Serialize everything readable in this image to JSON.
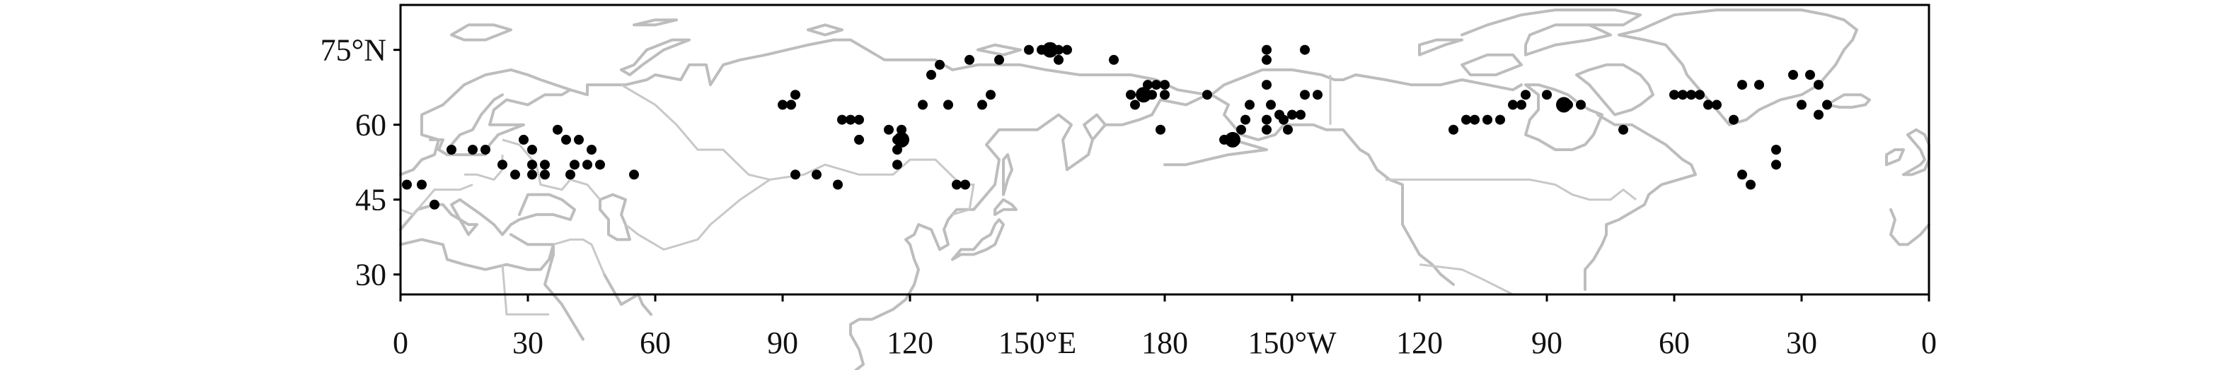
{
  "colors": {
    "coastline": "#bdbdbd",
    "border": "#c8c8c8",
    "station": "#000000",
    "frame": "#000000"
  },
  "map": {
    "projection": "equirectangular",
    "lon_start": 0,
    "lon_span": 360,
    "lat_range": [
      26,
      84
    ],
    "x_ticks": [
      {
        "lon": 0,
        "label": "0"
      },
      {
        "lon": 30,
        "label": "30"
      },
      {
        "lon": 60,
        "label": "60"
      },
      {
        "lon": 90,
        "label": "90"
      },
      {
        "lon": 120,
        "label": "120"
      },
      {
        "lon": 150,
        "label": "150°E"
      },
      {
        "lon": 180,
        "label": "180"
      },
      {
        "lon": 210,
        "label": "150°W"
      },
      {
        "lon": 240,
        "label": "120"
      },
      {
        "lon": 270,
        "label": "90"
      },
      {
        "lon": 300,
        "label": "60"
      },
      {
        "lon": 330,
        "label": "30"
      },
      {
        "lon": 360,
        "label": "0"
      }
    ],
    "y_ticks": [
      {
        "lat": 75,
        "label": "75°N"
      },
      {
        "lat": 60,
        "label": "60"
      },
      {
        "lat": 45,
        "label": "45"
      },
      {
        "lat": 30,
        "label": "30"
      }
    ],
    "stations": [
      [
        1.5,
        48
      ],
      [
        5,
        48
      ],
      [
        8,
        44
      ],
      [
        12,
        55
      ],
      [
        17,
        55
      ],
      [
        20,
        55
      ],
      [
        24,
        52
      ],
      [
        27,
        50
      ],
      [
        29,
        57
      ],
      [
        31,
        55
      ],
      [
        31,
        52
      ],
      [
        31,
        50
      ],
      [
        34,
        52
      ],
      [
        34,
        50
      ],
      [
        37,
        59
      ],
      [
        39,
        57
      ],
      [
        40,
        50
      ],
      [
        41,
        52
      ],
      [
        42,
        57
      ],
      [
        44,
        52
      ],
      [
        45,
        55
      ],
      [
        47,
        52
      ],
      [
        55,
        50
      ],
      [
        90,
        64
      ],
      [
        92,
        64
      ],
      [
        93,
        66
      ],
      [
        93,
        50
      ],
      [
        98,
        50
      ],
      [
        103,
        48
      ],
      [
        104,
        61
      ],
      [
        106,
        61
      ],
      [
        108,
        61
      ],
      [
        108,
        57
      ],
      [
        115,
        59
      ],
      [
        117,
        57
      ],
      [
        117,
        55
      ],
      [
        117,
        52
      ],
      [
        118,
        57
      ],
      [
        118,
        59
      ],
      [
        123,
        64
      ],
      [
        125,
        70
      ],
      [
        127,
        72
      ],
      [
        129,
        64
      ],
      [
        131,
        48
      ],
      [
        133,
        48
      ],
      [
        134,
        73
      ],
      [
        137,
        64
      ],
      [
        139,
        66
      ],
      [
        141,
        73
      ],
      [
        148,
        75
      ],
      [
        151,
        75
      ],
      [
        153,
        75
      ],
      [
        155,
        75
      ],
      [
        157,
        75
      ],
      [
        155,
        73
      ],
      [
        168,
        73
      ],
      [
        173,
        64
      ],
      [
        172,
        66
      ],
      [
        175,
        66
      ],
      [
        176,
        68
      ],
      [
        178,
        68
      ],
      [
        177,
        66
      ],
      [
        180,
        66
      ],
      [
        180,
        68
      ],
      [
        179,
        59
      ],
      [
        190,
        66
      ],
      [
        194,
        57
      ],
      [
        196,
        57
      ],
      [
        198,
        59
      ],
      [
        199,
        61
      ],
      [
        200,
        64
      ],
      [
        204,
        73
      ],
      [
        204,
        75
      ],
      [
        204,
        68
      ],
      [
        204,
        61
      ],
      [
        204,
        59
      ],
      [
        205,
        64
      ],
      [
        207,
        62
      ],
      [
        208,
        61
      ],
      [
        209,
        59
      ],
      [
        210,
        62
      ],
      [
        212,
        62
      ],
      [
        213,
        75
      ],
      [
        213,
        66
      ],
      [
        216,
        66
      ],
      [
        248,
        59
      ],
      [
        251,
        61
      ],
      [
        253,
        61
      ],
      [
        256,
        61
      ],
      [
        259,
        61
      ],
      [
        262,
        64
      ],
      [
        264,
        64
      ],
      [
        265,
        66
      ],
      [
        270,
        66
      ],
      [
        274,
        64
      ],
      [
        275,
        64
      ],
      [
        278,
        64
      ],
      [
        288,
        59
      ],
      [
        300,
        66
      ],
      [
        302,
        66
      ],
      [
        304,
        66
      ],
      [
        306,
        66
      ],
      [
        308,
        64
      ],
      [
        310,
        64
      ],
      [
        314,
        61
      ],
      [
        316,
        68
      ],
      [
        316,
        50
      ],
      [
        318,
        48
      ],
      [
        320,
        68
      ],
      [
        324,
        55
      ],
      [
        324,
        52
      ],
      [
        328,
        70
      ],
      [
        330,
        64
      ],
      [
        332,
        70
      ],
      [
        334,
        68
      ],
      [
        334,
        62
      ],
      [
        336,
        64
      ]
    ],
    "station_sizes_large": [
      [
        153,
        75
      ],
      [
        175,
        66
      ],
      [
        196,
        57
      ],
      [
        274,
        64
      ],
      [
        118,
        57
      ]
    ]
  }
}
